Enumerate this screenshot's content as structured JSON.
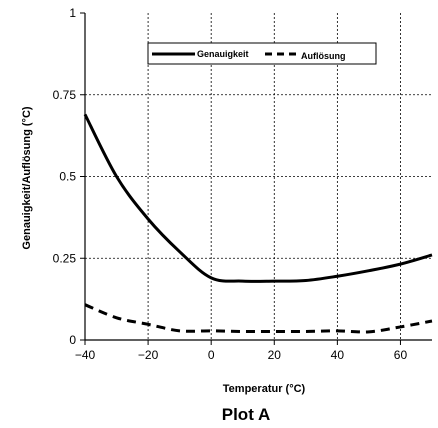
{
  "chart_data": {
    "type": "line",
    "caption": "Plot A",
    "xlabel": "Temperatur (°C)",
    "ylabel": "Genauigkeit/Auflösung (°C)",
    "xlim": [
      -40,
      70
    ],
    "ylim": [
      0,
      1
    ],
    "xticks": [
      -40,
      -20,
      0,
      20,
      40,
      60
    ],
    "xtick_labels": [
      "−40",
      "−20",
      "0",
      "20",
      "40",
      "60"
    ],
    "yticks": [
      0,
      0.25,
      0.5,
      0.75,
      1
    ],
    "ytick_labels": [
      "0",
      "0.25",
      "0.5",
      "0.75",
      "1"
    ],
    "grid": true,
    "legend_position": "top-right",
    "series": [
      {
        "name": "Genauigkeit",
        "style": "solid",
        "color": "#000000",
        "x": [
          -40,
          -30,
          -20,
          -10,
          0,
          10,
          20,
          30,
          40,
          50,
          60,
          70
        ],
        "y": [
          0.69,
          0.5,
          0.37,
          0.27,
          0.19,
          0.18,
          0.18,
          0.182,
          0.195,
          0.212,
          0.232,
          0.26
        ]
      },
      {
        "name": "Auflösung",
        "style": "dashed",
        "color": "#000000",
        "x": [
          -40,
          -30,
          -20,
          -10,
          0,
          10,
          20,
          30,
          40,
          50,
          60,
          70
        ],
        "y": [
          0.108,
          0.068,
          0.048,
          0.028,
          0.028,
          0.026,
          0.026,
          0.026,
          0.028,
          0.025,
          0.04,
          0.058
        ]
      }
    ]
  }
}
